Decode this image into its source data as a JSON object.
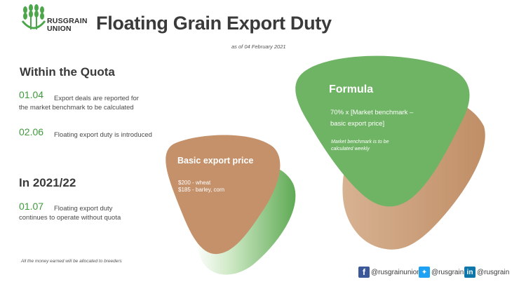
{
  "brand": {
    "name_line1": "RUSGRAIN",
    "name_line2": "UNION"
  },
  "title": "Floating Grain Export Duty",
  "as_of": "as of 04 February 2021",
  "within_quota": {
    "heading": "Within the Quota",
    "items": [
      {
        "date": "01.04",
        "text": "Export deals are reported for",
        "text2": "the market benchmark to be calculated"
      },
      {
        "date": "02.06",
        "text": "Floating export duty is introduced"
      }
    ]
  },
  "in_2021": {
    "heading": "In 2021/22",
    "items": [
      {
        "date": "01.07",
        "text": "Floating export duty",
        "text2": "continues to operate without quota"
      }
    ]
  },
  "footnote": "All the money earned will be allocated to breeders",
  "basic_price": {
    "title": "Basic export price",
    "line1": "$200 - wheat",
    "line2": "$185 - barley, corn"
  },
  "formula": {
    "title": "Formula",
    "line1": "70% x [Market benchmark –",
    "line2": "basic export price]",
    "note1": "Market benchmark is to be",
    "note2": "calculated weekly"
  },
  "social": {
    "facebook": "@rusgrainunion",
    "twitter": "@rusgrain",
    "linkedin": "@rusgrain"
  },
  "colors": {
    "green": "#6fb464",
    "green_light": "#9fd092",
    "tan": "#c4916a",
    "date_green": "#3f9a3c",
    "facebook": "#3b5998",
    "twitter": "#1da1f2",
    "linkedin": "#0e76a8"
  },
  "icons": [
    "wheat-logo-icon",
    "facebook-icon",
    "twitter-icon",
    "linkedin-icon"
  ]
}
